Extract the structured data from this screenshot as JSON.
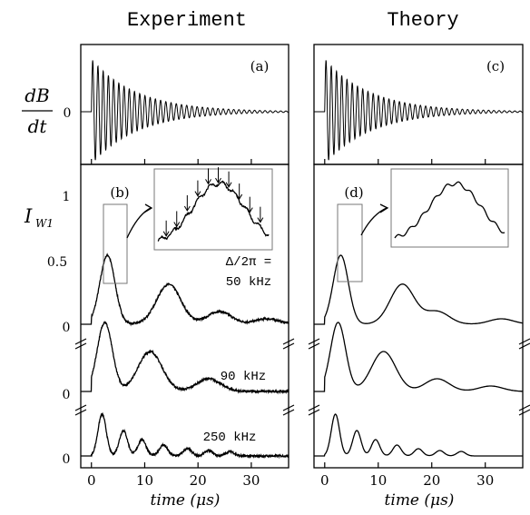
{
  "chart_data": {
    "type": "line",
    "columns": [
      {
        "column": "Experiment",
        "title": "Experiment"
      },
      {
        "column": "Theory",
        "title": "Theory"
      }
    ],
    "y_label_top": {
      "numerator": "dB",
      "denominator": "dt",
      "tick": "0"
    },
    "y_label_bottom": {
      "main": "I",
      "sub": "W1"
    },
    "y_ticks_bottom": [
      "1",
      "0.5",
      "0",
      "0",
      "0"
    ],
    "xlabel": "time (μs)",
    "x_ticks": [
      0,
      10,
      20,
      30
    ],
    "xlim": [
      -2,
      37
    ],
    "panel_labels": {
      "a": "(a)",
      "b": "(b)",
      "c": "(c)",
      "d": "(d)"
    },
    "detuning_label": "Δ/2π =",
    "series": [
      {
        "name": "50 kHz",
        "detuning_khz": 50,
        "experiment_peaks_x": [
          3,
          14.5,
          24,
          33
        ],
        "theory_peaks_x": [
          3,
          14.5,
          21,
          33
        ]
      },
      {
        "name": "90 kHz",
        "detuning_khz": 90,
        "experiment_peaks_x": [
          2.5,
          11,
          22
        ],
        "theory_peaks_x": [
          2.5,
          11,
          21,
          31
        ]
      },
      {
        "name": "250 kHz",
        "detuning_khz": 250,
        "experiment_peaks_x": [
          2,
          6,
          9.5,
          13.5,
          18,
          22,
          26
        ],
        "theory_peaks_x": [
          2,
          6,
          9.5,
          13.5,
          17.5,
          21.5,
          25.5
        ]
      }
    ],
    "inset_arrows": 10
  }
}
